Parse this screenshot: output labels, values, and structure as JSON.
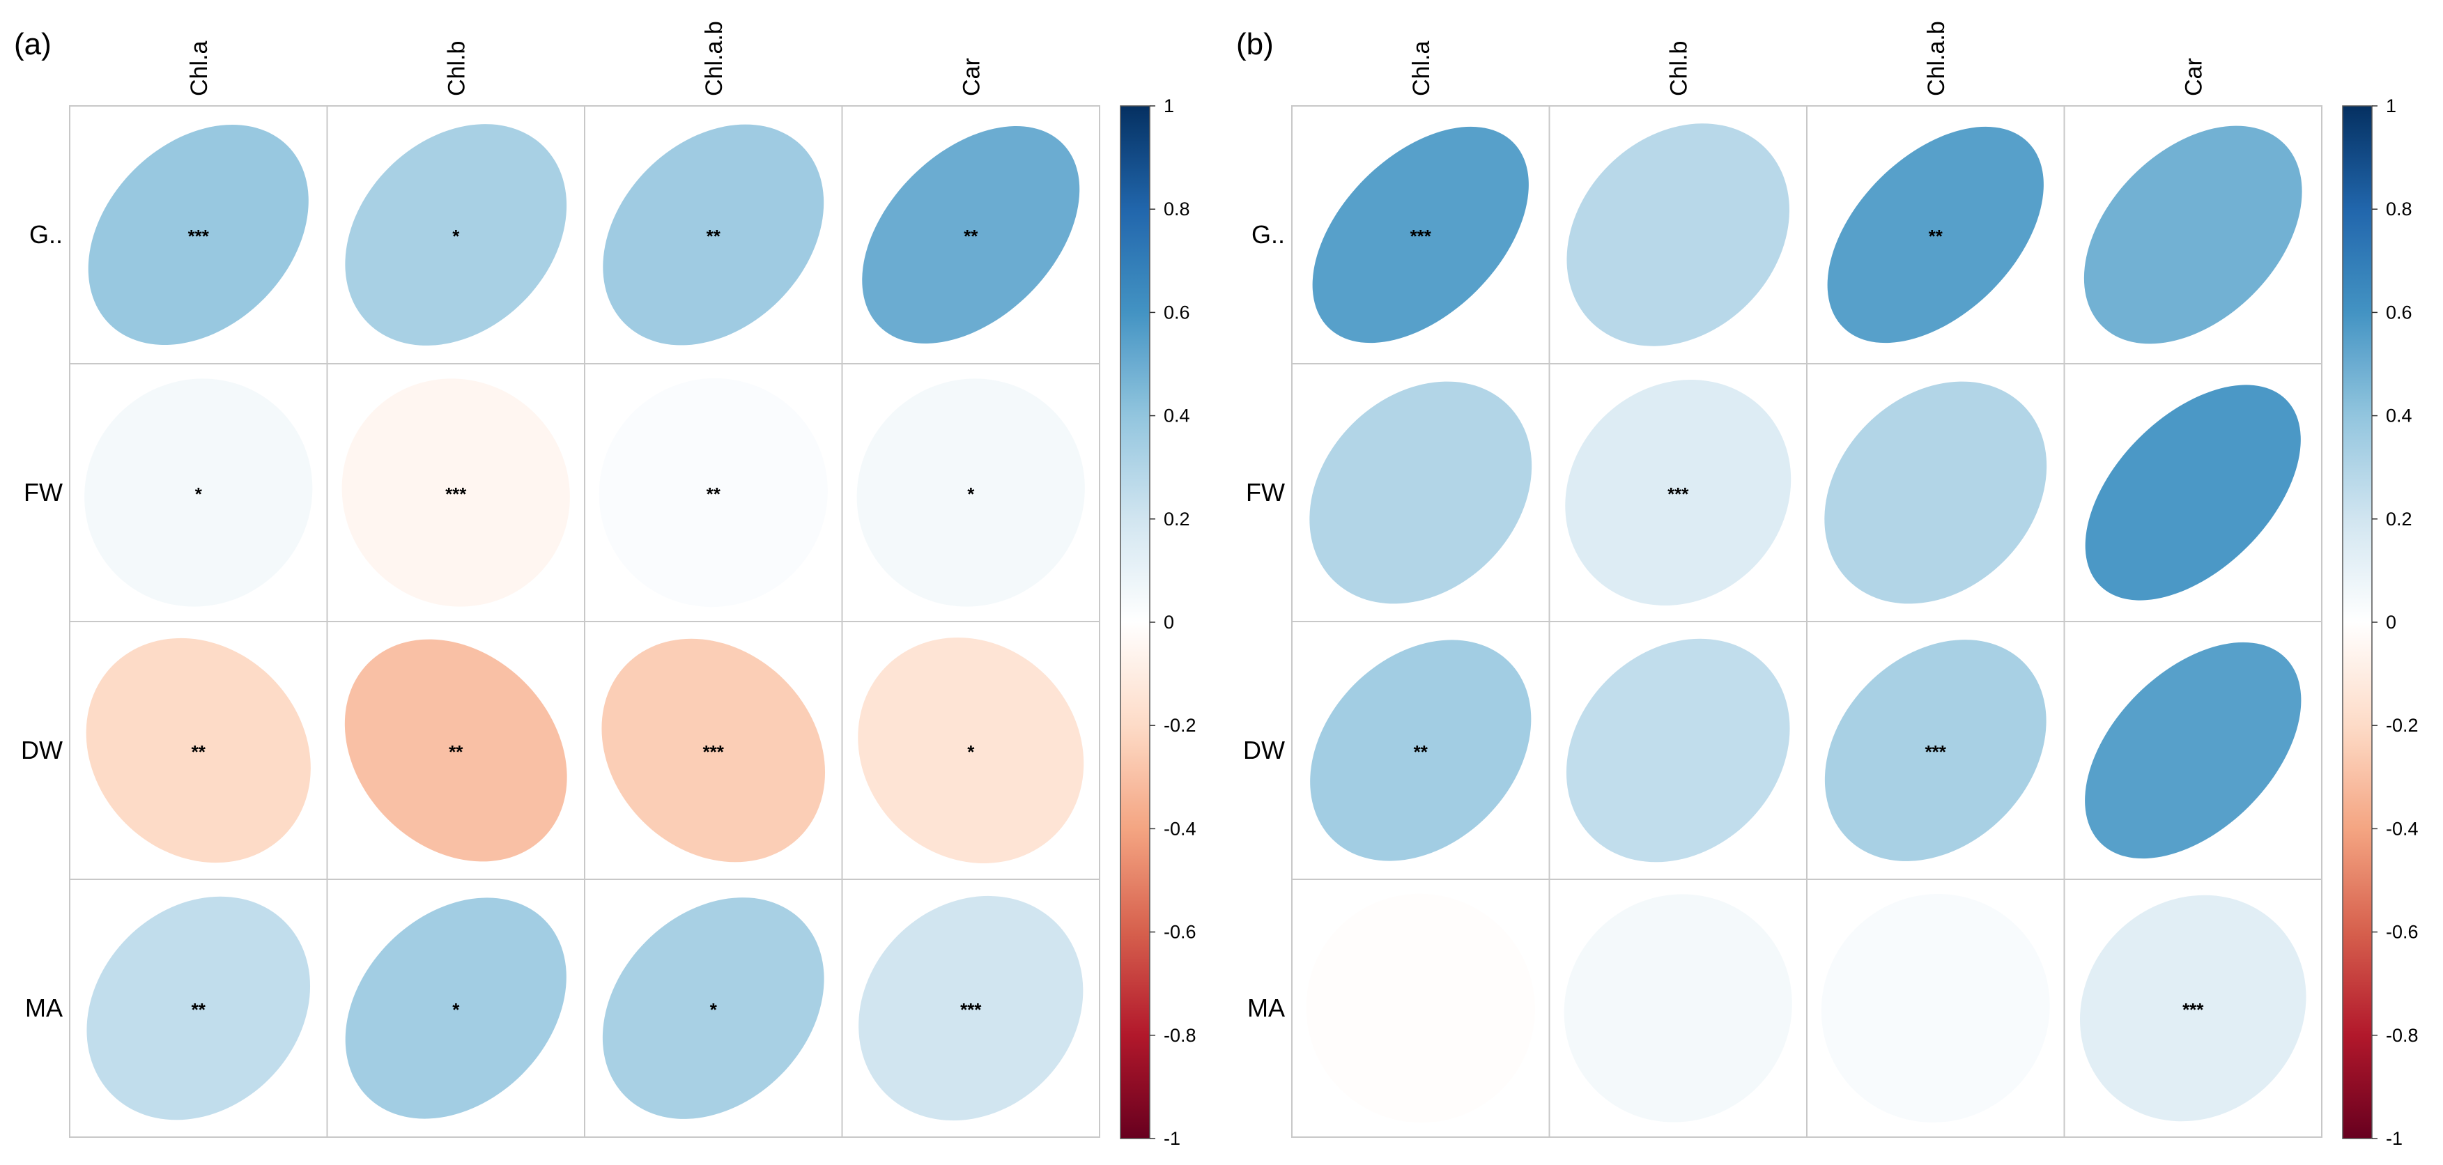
{
  "chart_data": [
    {
      "type": "heatmap",
      "subtype": "correlation-ellipse",
      "panel_label": "(a)",
      "columns": [
        "Chl.a",
        "Chl.b",
        "Chl.a.b",
        "Car"
      ],
      "rows": [
        "G..",
        "FW",
        "DW",
        "MA"
      ],
      "values": [
        [
          0.38,
          0.33,
          0.36,
          0.5
        ],
        [
          0.05,
          -0.05,
          0.02,
          0.05
        ],
        [
          -0.2,
          -0.3,
          -0.25,
          -0.15
        ],
        [
          0.25,
          0.35,
          0.33,
          0.2
        ]
      ],
      "significance": [
        [
          "***",
          "*",
          "**",
          "**"
        ],
        [
          "*",
          "***",
          "**",
          "*"
        ],
        [
          "**",
          "**",
          "***",
          "*"
        ],
        [
          "**",
          "*",
          "*",
          "***"
        ]
      ],
      "colorbar": {
        "min": -1,
        "max": 1,
        "ticks": [
          "1",
          "0.8",
          "0.6",
          "0.4",
          "0.2",
          "0",
          "-0.2",
          "-0.4",
          "-0.6",
          "-0.8",
          "-1"
        ]
      }
    },
    {
      "type": "heatmap",
      "subtype": "correlation-ellipse",
      "panel_label": "(b)",
      "columns": [
        "Chl.a",
        "Chl.b",
        "Chl.a.b",
        "Car"
      ],
      "rows": [
        "G..",
        "FW",
        "DW",
        "MA"
      ],
      "values": [
        [
          0.55,
          0.28,
          0.55,
          0.48
        ],
        [
          0.3,
          0.15,
          0.3,
          0.58
        ],
        [
          0.35,
          0.25,
          0.33,
          0.55
        ],
        [
          -0.01,
          0.05,
          0.03,
          0.13
        ]
      ],
      "significance": [
        [
          "***",
          "",
          "**",
          ""
        ],
        [
          "",
          "***",
          "",
          ""
        ],
        [
          "**",
          "",
          "***",
          ""
        ],
        [
          "",
          "",
          "",
          "***"
        ]
      ],
      "colorbar": {
        "min": -1,
        "max": 1,
        "ticks": [
          "1",
          "0.8",
          "0.6",
          "0.4",
          "0.2",
          "0",
          "-0.2",
          "-0.4",
          "-0.6",
          "-0.8",
          "-1"
        ]
      }
    }
  ]
}
